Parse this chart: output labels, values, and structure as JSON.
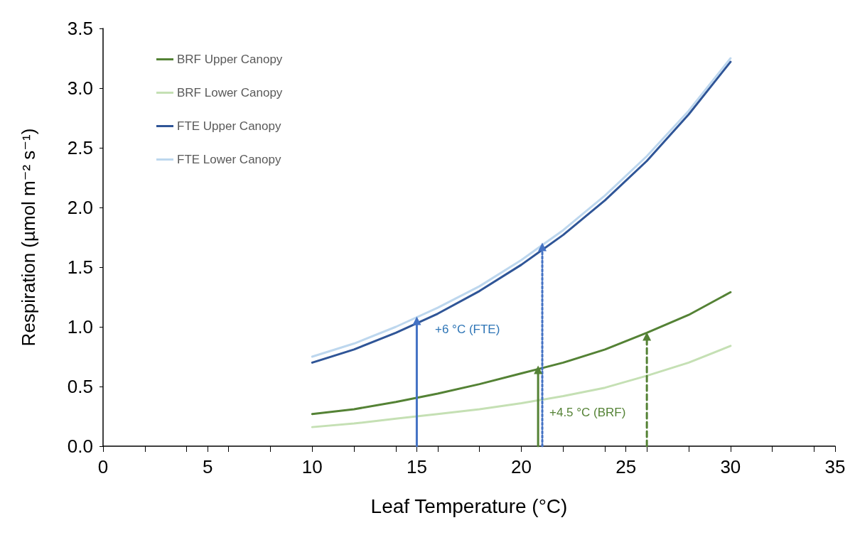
{
  "chart_data": {
    "type": "line",
    "xlabel": "Leaf Temperature (°C)",
    "ylabel": "Respiration (µmol m⁻² s⁻¹)",
    "xlim": [
      0,
      35
    ],
    "xticks": [
      0,
      5,
      10,
      15,
      20,
      25,
      30,
      35
    ],
    "ylim": [
      0,
      3.5
    ],
    "yticks": [
      {
        "value": 0,
        "label": "0.0"
      },
      {
        "value": 0.5,
        "label": "0.5"
      },
      {
        "value": 1,
        "label": "1.0"
      },
      {
        "value": 1.5,
        "label": "1.5"
      },
      {
        "value": 2,
        "label": "2.0"
      },
      {
        "value": 2.5,
        "label": "2.5"
      },
      {
        "value": 3,
        "label": "3.0"
      },
      {
        "value": 3.5,
        "label": "3.5"
      }
    ],
    "grid": false,
    "legend": "top left",
    "marker": "none",
    "line_style": "solid",
    "series": [
      {
        "name": "BRF Upper Canopy",
        "color": "#548235",
        "x": [
          10,
          12,
          14,
          16,
          18,
          20,
          22,
          24,
          26,
          28,
          30
        ],
        "values": [
          0.27,
          0.31,
          0.37,
          0.44,
          0.52,
          0.61,
          0.7,
          0.81,
          0.95,
          1.1,
          1.29
        ]
      },
      {
        "name": "BRF Lower Canopy",
        "color": "#c5e0b4",
        "x": [
          10,
          12,
          14,
          16,
          18,
          20,
          22,
          24,
          26,
          28,
          30
        ],
        "values": [
          0.16,
          0.19,
          0.23,
          0.27,
          0.31,
          0.36,
          0.42,
          0.49,
          0.59,
          0.7,
          0.84
        ]
      },
      {
        "name": "FTE Upper Canopy",
        "color": "#2f5597",
        "x": [
          10,
          12,
          14,
          16,
          18,
          20,
          22,
          24,
          26,
          28,
          30
        ],
        "values": [
          0.7,
          0.81,
          0.95,
          1.11,
          1.3,
          1.52,
          1.77,
          2.06,
          2.39,
          2.78,
          3.22
        ]
      },
      {
        "name": "FTE Lower Canopy",
        "color": "#bdd7ee",
        "x": [
          10,
          12,
          14,
          16,
          18,
          20,
          22,
          24,
          26,
          28,
          30
        ],
        "values": [
          0.75,
          0.86,
          1.0,
          1.16,
          1.34,
          1.56,
          1.81,
          2.1,
          2.43,
          2.81,
          3.25
        ]
      },
      {
        "color": "#4472c4",
        "x": [
          15,
          15
        ],
        "values": [
          0,
          1.05
        ],
        "line_style": "solid",
        "marker": "triangle"
      },
      {
        "color": "#4472c4",
        "x": [
          21,
          21
        ],
        "values": [
          0,
          1.67
        ],
        "line_style": "dotted",
        "marker": "triangle"
      },
      {
        "color": "#548235",
        "x": [
          20.8,
          20.8
        ],
        "values": [
          0,
          0.64
        ],
        "line_style": "solid",
        "marker": "triangle"
      },
      {
        "color": "#548235",
        "x": [
          26,
          26
        ],
        "values": [
          0,
          0.92
        ],
        "line_style": "dashed",
        "marker": "triangle"
      }
    ],
    "annotations": [
      "+6 °C (FTE)",
      "+4.5 °C (BRF)"
    ]
  }
}
